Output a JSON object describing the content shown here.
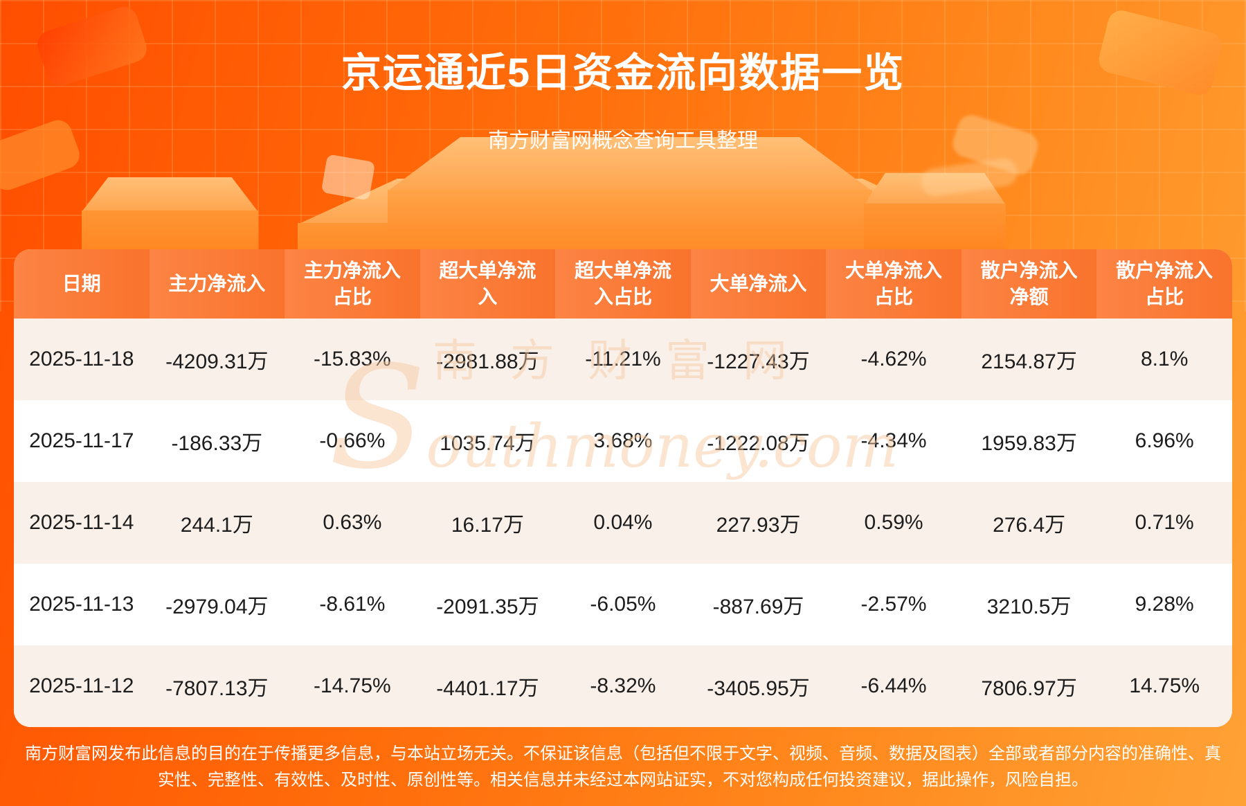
{
  "page": {
    "title": "京运通近5日资金流向数据一览",
    "subtitle": "南方财富网概念查询工具整理"
  },
  "watermark": {
    "brand_cn": "南方财富网",
    "brand_en": "Southmoney.com"
  },
  "chart_data": {
    "type": "table",
    "title": "京运通近5日资金流向数据一览",
    "columns": [
      "日期",
      "主力净流入",
      "主力净流入占比",
      "超大单净流入",
      "超大单净流入占比",
      "大单净流入",
      "大单净流入占比",
      "散户净流入净额",
      "散户净流入占比"
    ],
    "rows": [
      [
        "2025-11-18",
        "-4209.31万",
        "-15.83%",
        "-2981.88万",
        "-11.21%",
        "-1227.43万",
        "-4.62%",
        "2154.87万",
        "8.1%"
      ],
      [
        "2025-11-17",
        "-186.33万",
        "-0.66%",
        "1035.74万",
        "3.68%",
        "-1222.08万",
        "-4.34%",
        "1959.83万",
        "6.96%"
      ],
      [
        "2025-11-14",
        "244.1万",
        "0.63%",
        "16.17万",
        "0.04%",
        "227.93万",
        "0.59%",
        "276.4万",
        "0.71%"
      ],
      [
        "2025-11-13",
        "-2979.04万",
        "-8.61%",
        "-2091.35万",
        "-6.05%",
        "-887.69万",
        "-2.57%",
        "3210.5万",
        "9.28%"
      ],
      [
        "2025-11-12",
        "-7807.13万",
        "-14.75%",
        "-4401.17万",
        "-8.32%",
        "-3405.95万",
        "-6.44%",
        "7806.97万",
        "14.75%"
      ]
    ]
  },
  "footer": {
    "disclaimer": "南方财富网发布此信息的目的在于传播更多信息，与本站立场无关。不保证该信息（包括但不限于文字、视频、音频、数据及图表）全部或者部分内容的准确性、真实性、完整性、有效性、及时性、原创性等。相关信息并未经过本网站证实，不对您构成任何投资建议，据此操作，风险自担。"
  },
  "colors": {
    "background_orange": "#ff6a00",
    "table_header_orange": "#fa7a31",
    "row_tint_pink": "#faf0ea",
    "watermark_tan": "#f7c9a0",
    "text_dark": "#1c1c1c",
    "text_white": "#ffffff"
  }
}
